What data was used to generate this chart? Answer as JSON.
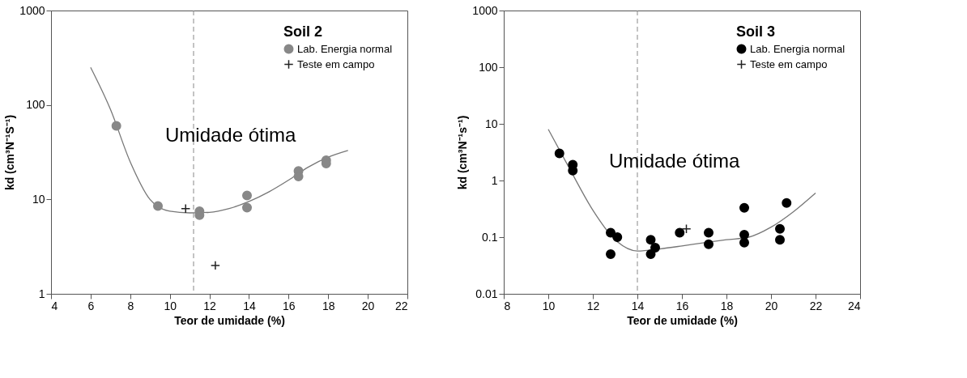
{
  "chart_data": [
    {
      "type": "scatter",
      "legend_title": "Soil 2",
      "xlabel": "Teor de umidade (%)",
      "ylabel": "kd (cm³N⁻¹S⁻¹)",
      "xlim": [
        4,
        22
      ],
      "xticks": [
        4,
        6,
        8,
        10,
        12,
        14,
        16,
        18,
        20,
        22
      ],
      "ylim": [
        1,
        1000
      ],
      "yticks": [
        1,
        10,
        100,
        1000
      ],
      "log": "y",
      "grid": false,
      "legend": "top right",
      "series": [
        {
          "name": "Lab. Energia normal",
          "color": "#888888",
          "marker": "circle",
          "x": [
            7.3,
            9.4,
            11.5,
            11.5,
            13.9,
            13.9,
            16.5,
            16.5,
            17.9,
            17.9
          ],
          "values": [
            60,
            8.5,
            7.5,
            6.8,
            11,
            8.2,
            20,
            17.5,
            26,
            24
          ]
        },
        {
          "name": "Teste em campo",
          "color": "#222222",
          "marker": "cross",
          "x": [
            10.8,
            12.3
          ],
          "values": [
            8,
            2
          ]
        },
        {
          "type": "line",
          "color": "#777777",
          "x": [
            6,
            7,
            8,
            9,
            10,
            11,
            12,
            13,
            14,
            15,
            16,
            17,
            18,
            19
          ],
          "values": [
            250,
            90,
            25,
            10,
            7.5,
            7.2,
            7.3,
            8,
            9.5,
            12,
            16,
            22,
            28,
            33
          ]
        }
      ],
      "ref_lines": [
        {
          "axis": "x",
          "value": 11.2,
          "color": "#888888",
          "line_style": "dashed"
        }
      ],
      "annotations": [
        {
          "text": "Umidade ótima",
          "x": 11.2,
          "y": 16
        }
      ]
    },
    {
      "type": "scatter",
      "legend_title": "Soil 3",
      "xlabel": "Teor de umidade (%)",
      "ylabel": "kd (cm³N⁻¹s⁻¹)",
      "xlim": [
        8,
        24
      ],
      "xticks": [
        8,
        10,
        12,
        14,
        16,
        18,
        20,
        22,
        24
      ],
      "ylim": [
        0.01,
        1000
      ],
      "yticks": [
        0.01,
        0.1,
        1,
        10,
        100,
        1000
      ],
      "log": "y",
      "grid": false,
      "legend": "top right",
      "series": [
        {
          "name": "Lab. Energia normal",
          "color": "#000000",
          "marker": "circle",
          "x": [
            10.5,
            11.1,
            11.1,
            12.8,
            12.8,
            13.1,
            14.6,
            14.6,
            14.8,
            15.9,
            17.2,
            17.2,
            18.8,
            18.8,
            18.8,
            20.4,
            20.4,
            20.7
          ],
          "values": [
            3,
            1.9,
            1.5,
            0.12,
            0.05,
            0.1,
            0.09,
            0.05,
            0.065,
            0.12,
            0.12,
            0.075,
            0.33,
            0.11,
            0.08,
            0.14,
            0.09,
            0.4
          ]
        },
        {
          "name": "Teste em campo",
          "color": "#222222",
          "marker": "cross",
          "x": [
            16.2
          ],
          "values": [
            0.14
          ]
        },
        {
          "type": "line",
          "color": "#777777",
          "x": [
            10,
            11,
            12,
            13,
            14,
            15,
            16,
            17,
            18,
            19,
            20,
            21,
            22
          ],
          "values": [
            8,
            1.5,
            0.3,
            0.09,
            0.057,
            0.062,
            0.07,
            0.08,
            0.09,
            0.1,
            0.15,
            0.28,
            0.6
          ]
        }
      ],
      "ref_lines": [
        {
          "axis": "x",
          "value": 14,
          "color": "#888888",
          "line_style": "dashed"
        }
      ],
      "annotations": [
        {
          "text": "Umidade ótima",
          "x": 14,
          "y": 0.35
        }
      ]
    }
  ]
}
